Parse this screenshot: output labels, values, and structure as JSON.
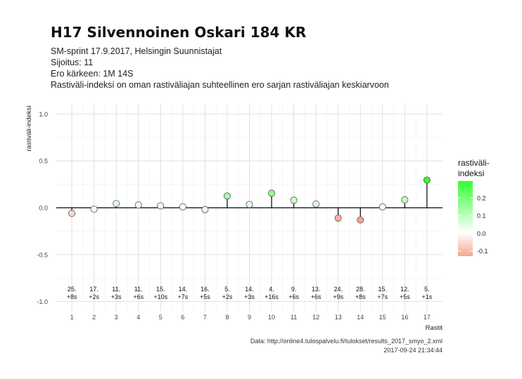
{
  "header": {
    "title": "H17 Silvennoinen Oskari 184 KR",
    "subtitle_lines": [
      "SM-sprint 17.9.2017, Helsingin Suunnistajat",
      "Sijoitus: 11",
      "Ero kärkeen: 1M 14S",
      "Rastiväli-indeksi on oman rastiväliajan suhteellinen ero sarjan rastiväliajan keskiarvoon"
    ]
  },
  "footer": {
    "source": "Data: http://online4.tulospalvelu.fi/tulokset/results_2017_smyo_2.xml",
    "timestamp": "2017-09-24 21:34:44"
  },
  "chart_data": {
    "type": "scatter",
    "xlabel": "Rastit",
    "ylabel": "rastiväli-indeksi",
    "ylim": [
      -1.1,
      1.1
    ],
    "xlim": [
      0.3,
      17.7
    ],
    "yticks": [
      -1.0,
      -0.5,
      0.0,
      0.5,
      1.0
    ],
    "ytick_labels": [
      "-1.0",
      "-0.5",
      "0.0",
      "0.5",
      "1.0"
    ],
    "x": [
      1,
      2,
      3,
      4,
      5,
      6,
      7,
      8,
      9,
      10,
      11,
      12,
      13,
      14,
      15,
      16,
      17
    ],
    "xtick_labels": [
      "1",
      "2",
      "3",
      "4",
      "5",
      "6",
      "7",
      "8",
      "9",
      "10",
      "11",
      "12",
      "13",
      "14",
      "15",
      "16",
      "17"
    ],
    "values": [
      -0.06,
      -0.015,
      0.045,
      0.03,
      0.02,
      0.01,
      -0.02,
      0.125,
      0.035,
      0.155,
      0.08,
      0.04,
      -0.11,
      -0.13,
      0.01,
      0.085,
      0.295
    ],
    "rank_labels": [
      "25.",
      "17.",
      "11.",
      "11.",
      "15.",
      "14.",
      "16.",
      "5.",
      "14.",
      "4.",
      "9.",
      "13.",
      "24.",
      "28.",
      "15.",
      "12.",
      "5."
    ],
    "diff_labels": [
      "+8s",
      "+2s",
      "+3s",
      "+6s",
      "+10s",
      "+7s",
      "+5s",
      "+2s",
      "+3s",
      "+16s",
      "+6s",
      "+6s",
      "+9s",
      "+8s",
      "+7s",
      "+5s",
      "+1s"
    ],
    "grid": true,
    "legend": {
      "title_lines": [
        "rastiväli-",
        "indeksi"
      ],
      "position": "right",
      "ticks": [
        0.2,
        0.1,
        0.0,
        -0.1
      ],
      "tick_labels": [
        "0.2",
        "0.1",
        "0.0",
        "-0.1"
      ],
      "range": [
        -0.13,
        0.295
      ],
      "color_low": "#f8a58f",
      "color_mid": "#ffffff",
      "color_high": "#33ff33"
    }
  }
}
